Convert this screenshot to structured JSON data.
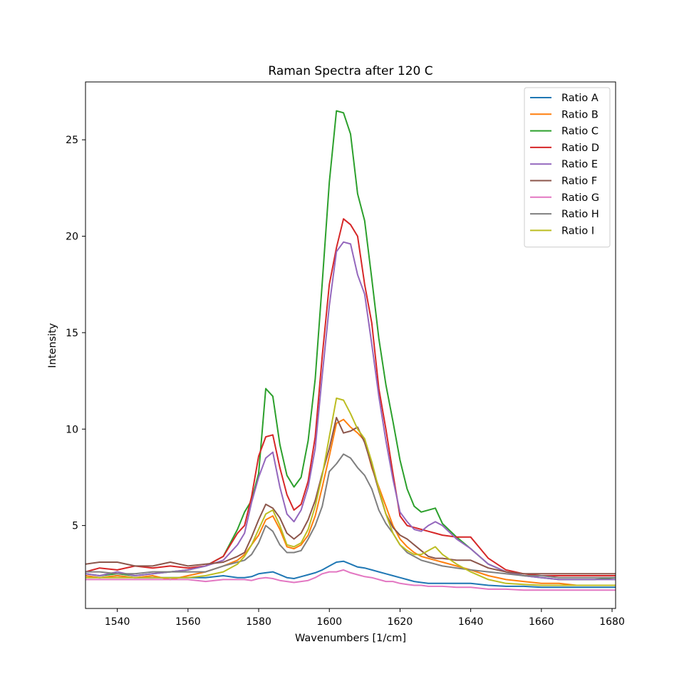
{
  "chart_data": {
    "type": "line",
    "title": "Raman Spectra after 120 C",
    "xlabel": "Wavenumbers [1/cm]",
    "ylabel": "Intensity",
    "xlim": [
      1531,
      1681
    ],
    "ylim": [
      0.7,
      28
    ],
    "xticks": [
      1540,
      1560,
      1580,
      1600,
      1620,
      1640,
      1660,
      1680
    ],
    "yticks": [
      5,
      10,
      15,
      20,
      25
    ],
    "grid": false,
    "legend_position": "top-right",
    "x": [
      1531,
      1535,
      1540,
      1545,
      1550,
      1555,
      1560,
      1565,
      1570,
      1574,
      1576,
      1578,
      1580,
      1582,
      1584,
      1586,
      1588,
      1590,
      1592,
      1594,
      1596,
      1598,
      1600,
      1602,
      1604,
      1606,
      1608,
      1610,
      1612,
      1614,
      1616,
      1618,
      1620,
      1622,
      1624,
      1626,
      1628,
      1630,
      1632,
      1636,
      1640,
      1645,
      1650,
      1655,
      1660,
      1665,
      1670,
      1675,
      1681
    ],
    "series": [
      {
        "name": "Ratio A",
        "color": "#1f77b4",
        "values": [
          2.4,
          2.3,
          2.4,
          2.3,
          2.3,
          2.3,
          2.3,
          2.3,
          2.4,
          2.3,
          2.3,
          2.35,
          2.5,
          2.55,
          2.6,
          2.45,
          2.3,
          2.25,
          2.35,
          2.45,
          2.55,
          2.7,
          2.9,
          3.1,
          3.15,
          3.0,
          2.85,
          2.8,
          2.7,
          2.6,
          2.5,
          2.4,
          2.3,
          2.2,
          2.1,
          2.05,
          2.0,
          2.0,
          2.0,
          2.0,
          2.0,
          1.9,
          1.85,
          1.85,
          1.8,
          1.8,
          1.8,
          1.8,
          1.8
        ]
      },
      {
        "name": "Ratio B",
        "color": "#ff7f0e",
        "values": [
          2.4,
          2.3,
          2.4,
          2.3,
          2.4,
          2.2,
          2.4,
          2.6,
          2.9,
          3.2,
          3.5,
          4.0,
          4.5,
          5.3,
          5.5,
          4.8,
          3.9,
          3.8,
          4.0,
          4.5,
          5.5,
          7.0,
          8.6,
          10.3,
          10.5,
          10.1,
          9.8,
          9.4,
          8.0,
          7.0,
          6.0,
          5.0,
          4.3,
          3.9,
          3.6,
          3.4,
          3.3,
          3.2,
          3.1,
          2.9,
          2.7,
          2.4,
          2.2,
          2.1,
          2.0,
          2.0,
          1.9,
          1.9,
          1.9
        ]
      },
      {
        "name": "Ratio C",
        "color": "#2ca02c",
        "values": [
          2.5,
          2.4,
          2.5,
          2.4,
          2.5,
          2.6,
          2.7,
          2.9,
          3.4,
          4.8,
          5.7,
          6.3,
          7.7,
          12.1,
          11.7,
          9.2,
          7.6,
          7.0,
          7.5,
          9.4,
          12.6,
          17.6,
          22.8,
          26.5,
          26.4,
          25.3,
          22.2,
          20.8,
          17.8,
          14.7,
          12.3,
          10.4,
          8.4,
          6.9,
          6.0,
          5.7,
          5.8,
          5.9,
          5.1,
          4.4,
          3.8,
          3.0,
          2.6,
          2.4,
          2.3,
          2.2,
          2.2,
          2.2,
          2.3
        ]
      },
      {
        "name": "Ratio D",
        "color": "#d62728",
        "values": [
          2.6,
          2.8,
          2.7,
          2.9,
          2.8,
          2.9,
          2.8,
          2.9,
          3.4,
          4.6,
          5.0,
          6.5,
          8.6,
          9.6,
          9.7,
          8.0,
          6.6,
          5.8,
          6.1,
          7.3,
          9.6,
          13.8,
          17.5,
          19.4,
          20.9,
          20.6,
          20.0,
          17.5,
          15.5,
          12.1,
          10.0,
          7.7,
          5.5,
          5.0,
          4.9,
          4.8,
          4.7,
          4.6,
          4.5,
          4.4,
          4.4,
          3.3,
          2.7,
          2.5,
          2.4,
          2.4,
          2.4,
          2.4,
          2.4
        ]
      },
      {
        "name": "Ratio E",
        "color": "#9467bd",
        "values": [
          2.5,
          2.4,
          2.6,
          2.4,
          2.5,
          2.6,
          2.7,
          2.9,
          3.2,
          4.0,
          4.6,
          6.2,
          7.5,
          8.5,
          8.8,
          7.0,
          5.6,
          5.2,
          5.8,
          7.0,
          9.0,
          12.8,
          16.4,
          19.2,
          19.7,
          19.6,
          18.0,
          17.0,
          14.4,
          11.7,
          9.4,
          7.4,
          5.7,
          5.2,
          4.8,
          4.7,
          5.0,
          5.2,
          5.0,
          4.3,
          3.8,
          3.0,
          2.6,
          2.4,
          2.3,
          2.2,
          2.2,
          2.2,
          2.2
        ]
      },
      {
        "name": "Ratio F",
        "color": "#8c564b",
        "values": [
          3.0,
          3.1,
          3.1,
          2.9,
          2.9,
          3.1,
          2.9,
          3.0,
          3.1,
          3.4,
          3.6,
          4.4,
          5.3,
          6.1,
          5.9,
          5.4,
          4.6,
          4.3,
          4.6,
          5.3,
          6.3,
          7.7,
          9.0,
          10.6,
          9.8,
          9.9,
          10.1,
          9.3,
          8.1,
          6.8,
          5.6,
          4.9,
          4.5,
          4.3,
          4.0,
          3.7,
          3.4,
          3.3,
          3.3,
          3.2,
          3.2,
          2.8,
          2.6,
          2.5,
          2.5,
          2.5,
          2.5,
          2.5,
          2.5
        ]
      },
      {
        "name": "Ratio G",
        "color": "#e377c2",
        "values": [
          2.2,
          2.2,
          2.2,
          2.2,
          2.2,
          2.2,
          2.2,
          2.1,
          2.2,
          2.2,
          2.2,
          2.15,
          2.25,
          2.3,
          2.25,
          2.15,
          2.1,
          2.05,
          2.1,
          2.15,
          2.3,
          2.5,
          2.6,
          2.6,
          2.7,
          2.55,
          2.45,
          2.35,
          2.3,
          2.2,
          2.1,
          2.1,
          2.0,
          1.95,
          1.9,
          1.9,
          1.85,
          1.85,
          1.85,
          1.8,
          1.8,
          1.7,
          1.7,
          1.65,
          1.65,
          1.65,
          1.65,
          1.65,
          1.65
        ]
      },
      {
        "name": "Ratio H",
        "color": "#7f7f7f",
        "values": [
          2.6,
          2.6,
          2.5,
          2.5,
          2.6,
          2.6,
          2.6,
          2.6,
          2.9,
          3.1,
          3.2,
          3.5,
          4.1,
          5.0,
          4.7,
          4.0,
          3.6,
          3.6,
          3.7,
          4.3,
          5.0,
          6.0,
          7.8,
          8.2,
          8.7,
          8.5,
          8.0,
          7.6,
          6.9,
          5.8,
          5.1,
          4.6,
          4.0,
          3.6,
          3.4,
          3.2,
          3.1,
          3.0,
          2.9,
          2.8,
          2.7,
          2.6,
          2.5,
          2.4,
          2.4,
          2.3,
          2.3,
          2.3,
          2.3
        ]
      },
      {
        "name": "Ratio I",
        "color": "#bcbd22",
        "values": [
          2.3,
          2.3,
          2.3,
          2.3,
          2.3,
          2.3,
          2.3,
          2.4,
          2.6,
          3.0,
          3.4,
          4.0,
          4.8,
          5.6,
          5.8,
          5.0,
          4.0,
          3.9,
          4.1,
          4.8,
          6.0,
          7.6,
          9.6,
          11.6,
          11.5,
          10.8,
          10.0,
          9.5,
          8.3,
          6.9,
          5.6,
          4.6,
          4.0,
          3.7,
          3.5,
          3.5,
          3.7,
          3.9,
          3.5,
          3.0,
          2.6,
          2.2,
          2.0,
          1.95,
          1.9,
          1.9,
          1.9,
          1.9,
          1.9
        ]
      }
    ]
  }
}
